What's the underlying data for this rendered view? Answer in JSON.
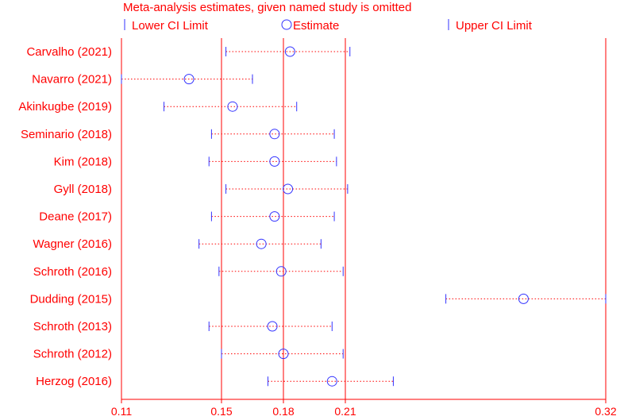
{
  "chart_data": {
    "type": "scatter",
    "title": "Meta-analysis estimates, given named study is omitted",
    "legend": [
      {
        "label": "Lower CI Limit",
        "marker": "tick"
      },
      {
        "label": "Estimate",
        "marker": "circle"
      },
      {
        "label": "Upper CI Limit",
        "marker": "tick"
      }
    ],
    "legend_placement": "top",
    "studies": [
      {
        "label": "Carvalho (2021)",
        "lower": 0.152,
        "estimate": 0.181,
        "upper": 0.208
      },
      {
        "label": "Navarro (2021)",
        "lower": 0.11,
        "estimate": 0.137,
        "upper": 0.164
      },
      {
        "label": "Akinkugbe (2019)",
        "lower": 0.127,
        "estimate": 0.155,
        "upper": 0.184
      },
      {
        "label": "Seminario (2018)",
        "lower": 0.146,
        "estimate": 0.174,
        "upper": 0.201
      },
      {
        "label": "Kim (2018)",
        "lower": 0.145,
        "estimate": 0.174,
        "upper": 0.202
      },
      {
        "label": "Gyll (2018)",
        "lower": 0.152,
        "estimate": 0.18,
        "upper": 0.207
      },
      {
        "label": "Deane (2017)",
        "lower": 0.146,
        "estimate": 0.174,
        "upper": 0.201
      },
      {
        "label": "Wagner (2016)",
        "lower": 0.141,
        "estimate": 0.168,
        "upper": 0.195
      },
      {
        "label": "Schroth (2016)",
        "lower": 0.149,
        "estimate": 0.177,
        "upper": 0.205
      },
      {
        "label": "Dudding (2015)",
        "lower": 0.25,
        "estimate": 0.284,
        "upper": 0.32
      },
      {
        "label": "Schroth (2013)",
        "lower": 0.145,
        "estimate": 0.173,
        "upper": 0.2
      },
      {
        "label": "Schroth (2012)",
        "lower": 0.15,
        "estimate": 0.178,
        "upper": 0.205
      },
      {
        "label": "Herzog (2016)",
        "lower": 0.171,
        "estimate": 0.2,
        "upper": 0.227
      }
    ],
    "x_ticks": [
      {
        "value": 0.11,
        "label": "0.11"
      },
      {
        "value": 0.15,
        "label": "0.15"
      },
      {
        "value": 0.178,
        "label": "0.18"
      },
      {
        "value": 0.206,
        "label": "0.21"
      },
      {
        "value": 0.32,
        "label": "0.32"
      }
    ],
    "reference_lines": [
      0.15,
      0.178,
      0.206
    ],
    "xlim": [
      0.11,
      0.32
    ],
    "grid": false,
    "colors": {
      "text": "#ff0000",
      "axis": "#ff0000",
      "reference_line": "#ff0000",
      "ci_marker": "#3333ff",
      "estimate_marker": "#3333ff",
      "dotted_line": "#ff0000",
      "background": "#ffffff"
    }
  }
}
